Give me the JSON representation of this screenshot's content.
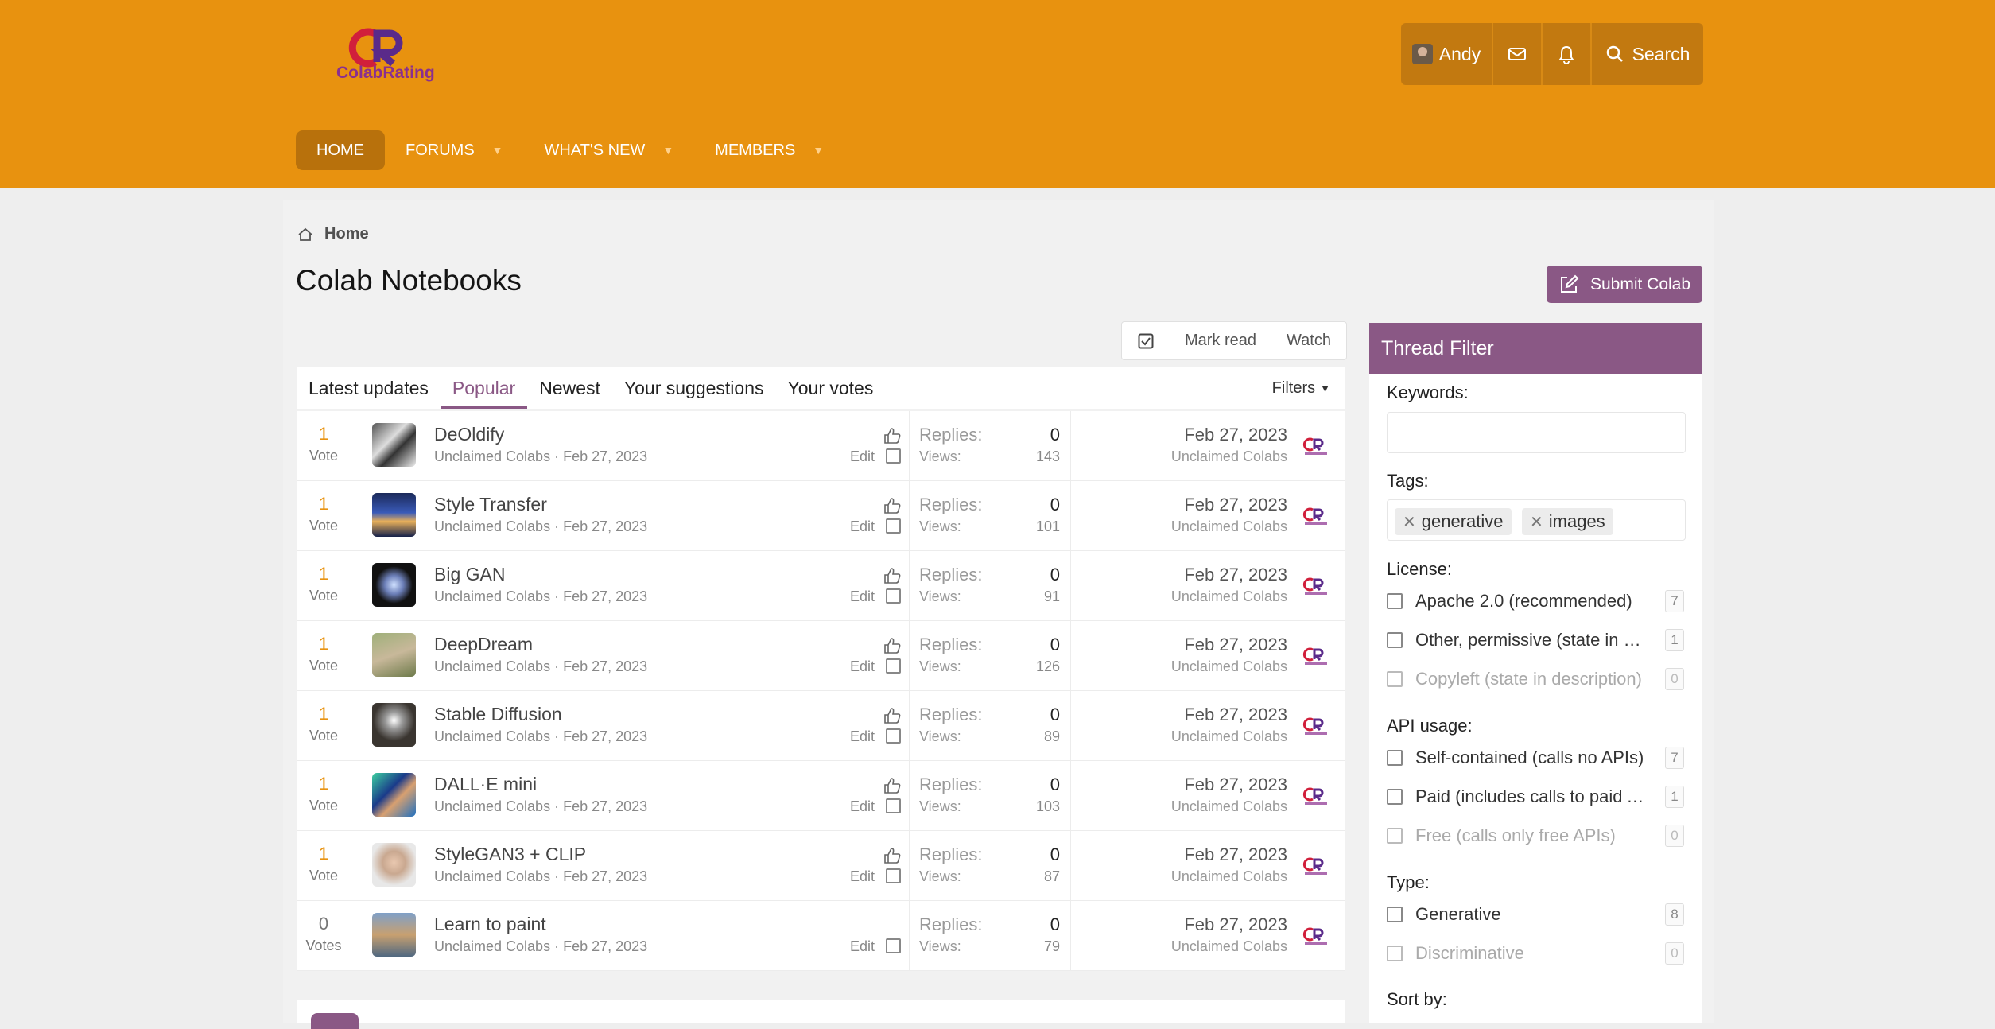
{
  "brand": {
    "name": "ColabRating"
  },
  "userbar": {
    "username": "Andy",
    "search_label": "Search"
  },
  "nav": [
    {
      "label": "HOME"
    },
    {
      "label": "FORUMS"
    },
    {
      "label": "WHAT'S NEW"
    },
    {
      "label": "MEMBERS"
    }
  ],
  "breadcrumb": {
    "home": "Home"
  },
  "page": {
    "title": "Colab Notebooks",
    "submit_label": "Submit Colab"
  },
  "actions": {
    "mark_read": "Mark read",
    "watch": "Watch"
  },
  "tabs": [
    {
      "label": "Latest updates"
    },
    {
      "label": "Popular",
      "active": true
    },
    {
      "label": "Newest"
    },
    {
      "label": "Your suggestions"
    },
    {
      "label": "Your votes"
    }
  ],
  "filters_label": "Filters",
  "list": {
    "replies_label": "Replies:",
    "views_label": "Views:",
    "edit_label": "Edit",
    "rows": [
      {
        "votes": "1",
        "vote_label": "Vote",
        "title": "DeOldify",
        "author": "Unclaimed Colabs",
        "date": "Feb 27, 2023",
        "replies": "0",
        "views": "143",
        "last_date": "Feb 27, 2023",
        "last_user": "Unclaimed Colabs",
        "liked": true
      },
      {
        "votes": "1",
        "vote_label": "Vote",
        "title": "Style Transfer",
        "author": "Unclaimed Colabs",
        "date": "Feb 27, 2023",
        "replies": "0",
        "views": "101",
        "last_date": "Feb 27, 2023",
        "last_user": "Unclaimed Colabs",
        "liked": true
      },
      {
        "votes": "1",
        "vote_label": "Vote",
        "title": "Big GAN",
        "author": "Unclaimed Colabs",
        "date": "Feb 27, 2023",
        "replies": "0",
        "views": "91",
        "last_date": "Feb 27, 2023",
        "last_user": "Unclaimed Colabs",
        "liked": true
      },
      {
        "votes": "1",
        "vote_label": "Vote",
        "title": "DeepDream",
        "author": "Unclaimed Colabs",
        "date": "Feb 27, 2023",
        "replies": "0",
        "views": "126",
        "last_date": "Feb 27, 2023",
        "last_user": "Unclaimed Colabs",
        "liked": true
      },
      {
        "votes": "1",
        "vote_label": "Vote",
        "title": "Stable Diffusion",
        "author": "Unclaimed Colabs",
        "date": "Feb 27, 2023",
        "replies": "0",
        "views": "89",
        "last_date": "Feb 27, 2023",
        "last_user": "Unclaimed Colabs",
        "liked": true
      },
      {
        "votes": "1",
        "vote_label": "Vote",
        "title": "DALL·E mini",
        "author": "Unclaimed Colabs",
        "date": "Feb 27, 2023",
        "replies": "0",
        "views": "103",
        "last_date": "Feb 27, 2023",
        "last_user": "Unclaimed Colabs",
        "liked": true
      },
      {
        "votes": "1",
        "vote_label": "Vote",
        "title": "StyleGAN3 + CLIP",
        "author": "Unclaimed Colabs",
        "date": "Feb 27, 2023",
        "replies": "0",
        "views": "87",
        "last_date": "Feb 27, 2023",
        "last_user": "Unclaimed Colabs",
        "liked": true
      },
      {
        "votes": "0",
        "vote_label": "Votes",
        "title": "Learn to paint",
        "author": "Unclaimed Colabs",
        "date": "Feb 27, 2023",
        "replies": "0",
        "views": "79",
        "last_date": "Feb 27, 2023",
        "last_user": "Unclaimed Colabs",
        "liked": false
      }
    ]
  },
  "sidebar": {
    "title": "Thread Filter",
    "keywords_label": "Keywords:",
    "tags_label": "Tags:",
    "tags": [
      "generative",
      "images"
    ],
    "license_label": "License:",
    "license_options": [
      {
        "label": "Apache 2.0 (recommended)",
        "count": "7",
        "disabled": false
      },
      {
        "label": "Other, permissive (state in description)",
        "count": "1",
        "disabled": false
      },
      {
        "label": "Copyleft (state in description)",
        "count": "0",
        "disabled": true
      }
    ],
    "api_label": "API usage:",
    "api_options": [
      {
        "label": "Self-contained (calls no APIs)",
        "count": "7",
        "disabled": false
      },
      {
        "label": "Paid (includes calls to paid APIs)",
        "count": "1",
        "disabled": false
      },
      {
        "label": "Free (calls only free APIs)",
        "count": "0",
        "disabled": true
      }
    ],
    "type_label": "Type:",
    "type_options": [
      {
        "label": "Generative",
        "count": "8",
        "disabled": false
      },
      {
        "label": "Discriminative",
        "count": "0",
        "disabled": true
      }
    ],
    "sort_label": "Sort by:"
  },
  "colors": {
    "header": "#E8920F",
    "accent": "#8a5885",
    "vote": "#E8920F"
  }
}
